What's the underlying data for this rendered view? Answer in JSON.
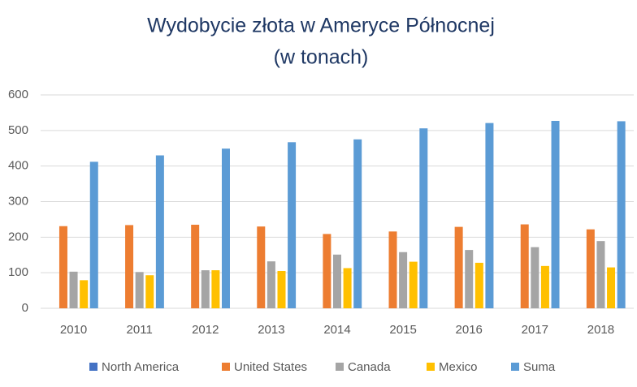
{
  "chart_data": {
    "type": "bar",
    "title": "Wydobycie złota w Ameryce Północnej",
    "subtitle": "(w tonach)",
    "categories": [
      "2010",
      "2011",
      "2012",
      "2013",
      "2014",
      "2015",
      "2016",
      "2017",
      "2018"
    ],
    "series": [
      {
        "name": "North America",
        "color": "#4472c4",
        "values": [
          null,
          null,
          null,
          null,
          null,
          null,
          null,
          null,
          null
        ]
      },
      {
        "name": "United States",
        "color": "#ed7d31",
        "values": [
          231,
          234,
          235,
          230,
          209,
          216,
          229,
          236,
          222
        ]
      },
      {
        "name": "Canada",
        "color": "#a5a5a5",
        "values": [
          103,
          102,
          107,
          132,
          151,
          158,
          164,
          172,
          189
        ]
      },
      {
        "name": "Mexico",
        "color": "#ffc000",
        "values": [
          79,
          93,
          107,
          105,
          113,
          131,
          128,
          119,
          115
        ]
      },
      {
        "name": "Suma",
        "color": "#5b9bd5",
        "values": [
          412,
          430,
          449,
          467,
          475,
          506,
          521,
          527,
          526
        ]
      }
    ],
    "ylim": [
      0,
      600
    ],
    "yticks": [
      0,
      100,
      200,
      300,
      400,
      500,
      600
    ],
    "grid": true,
    "legend": "bottom"
  }
}
